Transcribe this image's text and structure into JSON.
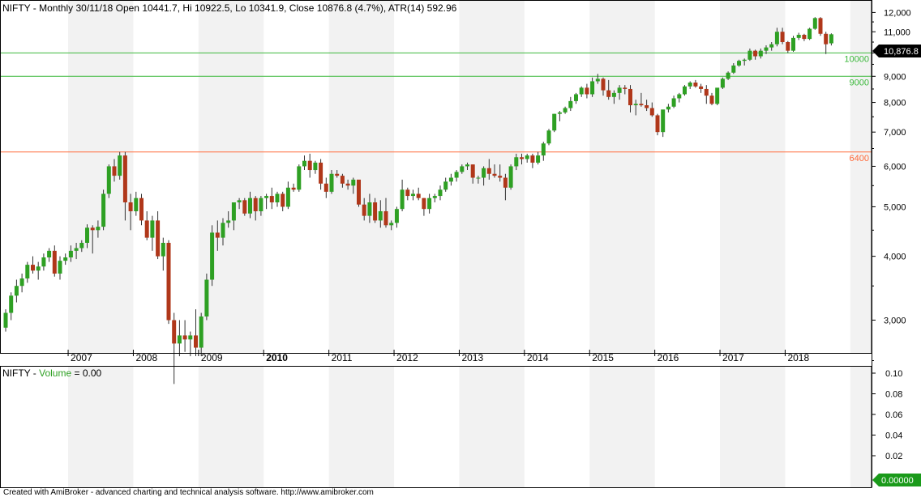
{
  "header": {
    "symbol": "NIFTY",
    "info": " - Monthly 30/11/18 Open 10441.7, Hi 10922.5, Lo 10341.9, Close 10876.8 (4.7%), ATR(14) 592.96"
  },
  "volume_header": {
    "symbol": "NIFTY",
    "dash": " - ",
    "label": "Volume",
    "value_text": " = 0.00"
  },
  "footer": "Created with AmiBroker - advanced charting and technical analysis software. http://www.amibroker.com",
  "colors": {
    "up": "#2ea023",
    "down": "#b0371a",
    "level_green": "#3cb93c",
    "level_orange": "#ff6a3a",
    "band": "#f2f2f2",
    "axis": "#000000"
  },
  "last_price_badge": "10,876.8",
  "volume_badge": "0.00000",
  "chart_data": [
    {
      "type": "candlestick",
      "title": "NIFTY - Monthly 30/11/18 Open 10441.7, Hi 10922.5, Lo 10341.9, Close 10876.8 (4.7%), ATR(14) 592.96",
      "x_labels": [
        "2007",
        "2008",
        "2009",
        "2010",
        "2011",
        "2012",
        "2013",
        "2014",
        "2015",
        "2016",
        "2017",
        "2018"
      ],
      "bold_x_label": "2010",
      "y_ticks": [
        "12,000",
        "11,000",
        "10,000",
        "9,000",
        "8,000",
        "7,000",
        "6,000",
        "5,000",
        "4,000",
        "3,000"
      ],
      "ylim": [
        2000,
        12400
      ],
      "start": "2006-01",
      "series": [
        {
          "values": [
            [
              2900,
              3150,
              2850,
              3100
            ],
            [
              3100,
              3400,
              3000,
              3350
            ],
            [
              3350,
              3600,
              3250,
              3500
            ],
            [
              3500,
              3700,
              3400,
              3620
            ],
            [
              3620,
              3900,
              3550,
              3850
            ],
            [
              3850,
              4000,
              3700,
              3750
            ],
            [
              3750,
              3900,
              3600,
              3820
            ],
            [
              3820,
              4050,
              3750,
              3980
            ],
            [
              3980,
              4150,
              3900,
              4100
            ],
            [
              4100,
              4200,
              3650,
              3700
            ],
            [
              3700,
              4000,
              3600,
              3920
            ],
            [
              3920,
              4050,
              3850,
              3980
            ],
            [
              3980,
              4200,
              3900,
              4100
            ],
            [
              4100,
              4250,
              3950,
              4150
            ],
            [
              4150,
              4300,
              4080,
              4250
            ],
            [
              4250,
              4620,
              4150,
              4550
            ],
            [
              4550,
              4600,
              4050,
              4500
            ],
            [
              4500,
              4700,
              4350,
              4570
            ],
            [
              4570,
              5400,
              4500,
              5300
            ],
            [
              5300,
              6050,
              5200,
              6000
            ],
            [
              6000,
              6200,
              5600,
              5750
            ],
            [
              5750,
              6400,
              5650,
              6300
            ],
            [
              6300,
              6400,
              4700,
              5100
            ],
            [
              5100,
              5300,
              4500,
              4900
            ],
            [
              4900,
              5350,
              4800,
              5200
            ],
            [
              5200,
              5300,
              4600,
              4700
            ],
            [
              4700,
              4900,
              4300,
              4350
            ],
            [
              4350,
              4800,
              4100,
              4700
            ],
            [
              4700,
              4900,
              3950,
              4000
            ],
            [
              4000,
              4350,
              3750,
              4250
            ],
            [
              4250,
              4300,
              2950,
              3000
            ],
            [
              3000,
              3100,
              2250,
              2700
            ],
            [
              2700,
              3000,
              2550,
              2800
            ],
            [
              2800,
              3000,
              2600,
              2750
            ],
            [
              2750,
              2850,
              2550,
              2800
            ],
            [
              2800,
              3150,
              2550,
              2650
            ],
            [
              2650,
              3100,
              2550,
              3050
            ],
            [
              3050,
              3700,
              3000,
              3600
            ],
            [
              3600,
              4600,
              3500,
              4450
            ],
            [
              4450,
              4700,
              4100,
              4350
            ],
            [
              4350,
              4750,
              4200,
              4650
            ],
            [
              4650,
              4900,
              4550,
              4700
            ],
            [
              4700,
              5000,
              4500,
              5100
            ],
            [
              5100,
              5200,
              4950,
              5150
            ],
            [
              5150,
              5200,
              4800,
              4850
            ],
            [
              4850,
              5350,
              4750,
              5200
            ],
            [
              5200,
              5250,
              4700,
              4900
            ],
            [
              4900,
              5250,
              4800,
              5200
            ],
            [
              5200,
              5300,
              4950,
              5250
            ],
            [
              5250,
              5450,
              4950,
              5100
            ],
            [
              5100,
              5350,
              5000,
              5300
            ],
            [
              5300,
              5350,
              4900,
              5000
            ],
            [
              5000,
              5600,
              4950,
              5450
            ],
            [
              5450,
              5550,
              5350,
              5400
            ],
            [
              5400,
              6050,
              5350,
              6000
            ],
            [
              6000,
              6300,
              5900,
              6150
            ],
            [
              6150,
              6350,
              5700,
              5900
            ],
            [
              5900,
              6150,
              5800,
              6100
            ],
            [
              6100,
              6200,
              5400,
              5550
            ],
            [
              5550,
              5700,
              5200,
              5350
            ],
            [
              5350,
              5900,
              5300,
              5800
            ],
            [
              5800,
              5900,
              5700,
              5750
            ],
            [
              5750,
              5800,
              5450,
              5550
            ],
            [
              5550,
              5650,
              5400,
              5500
            ],
            [
              5500,
              5700,
              5300,
              5650
            ],
            [
              5650,
              5600,
              5000,
              5050
            ],
            [
              5050,
              5200,
              4700,
              4800
            ],
            [
              4800,
              5300,
              4650,
              5100
            ],
            [
              5100,
              5200,
              4650,
              4700
            ],
            [
              4700,
              5150,
              4550,
              4900
            ],
            [
              4900,
              5200,
              4550,
              4600
            ],
            [
              4600,
              4700,
              4500,
              4650
            ],
            [
              4650,
              5000,
              4550,
              4950
            ],
            [
              4950,
              5650,
              4900,
              5400
            ],
            [
              5400,
              5450,
              5150,
              5250
            ],
            [
              5250,
              5400,
              5150,
              5300
            ],
            [
              5300,
              5450,
              5150,
              5200
            ],
            [
              5200,
              5200,
              4800,
              4950
            ],
            [
              4950,
              5300,
              4850,
              5200
            ],
            [
              5200,
              5300,
              5100,
              5250
            ],
            [
              5250,
              5500,
              5150,
              5400
            ],
            [
              5400,
              5700,
              5350,
              5600
            ],
            [
              5600,
              5800,
              5500,
              5700
            ],
            [
              5700,
              5900,
              5600,
              5850
            ],
            [
              5850,
              6050,
              5800,
              6000
            ],
            [
              6000,
              6100,
              5900,
              6050
            ],
            [
              6050,
              6050,
              5550,
              5700
            ],
            [
              5700,
              5750,
              5550,
              5700
            ],
            [
              5700,
              6000,
              5500,
              5950
            ],
            [
              5950,
              6200,
              5650,
              5800
            ],
            [
              5800,
              6050,
              5700,
              5750
            ],
            [
              5750,
              6050,
              5600,
              5700
            ],
            [
              5700,
              5800,
              5150,
              5450
            ],
            [
              5450,
              6050,
              5400,
              6000
            ],
            [
              6000,
              6350,
              5900,
              6250
            ],
            [
              6250,
              6350,
              6050,
              6200
            ],
            [
              6200,
              6350,
              6100,
              6300
            ],
            [
              6300,
              6350,
              5950,
              6100
            ],
            [
              6100,
              6400,
              6050,
              6300
            ],
            [
              6300,
              6700,
              6150,
              6650
            ],
            [
              6650,
              7100,
              6600,
              7050
            ],
            [
              7050,
              7600,
              7000,
              7600
            ],
            [
              7600,
              7700,
              7350,
              7650
            ],
            [
              7650,
              7850,
              7600,
              7800
            ],
            [
              7800,
              8200,
              7700,
              8050
            ],
            [
              8050,
              8350,
              7950,
              8300
            ],
            [
              8300,
              8600,
              8200,
              8550
            ],
            [
              8550,
              8700,
              8150,
              8300
            ],
            [
              8300,
              8950,
              8200,
              8800
            ],
            [
              8800,
              9100,
              8700,
              8900
            ],
            [
              8900,
              8950,
              8250,
              8450
            ],
            [
              8450,
              8850,
              8100,
              8200
            ],
            [
              8200,
              8450,
              7950,
              8350
            ],
            [
              8350,
              8650,
              8100,
              8550
            ],
            [
              8550,
              8650,
              8300,
              8500
            ],
            [
              8500,
              8650,
              7650,
              7900
            ],
            [
              7900,
              8100,
              7550,
              7950
            ],
            [
              7950,
              8350,
              7850,
              7900
            ],
            [
              7900,
              8100,
              7700,
              7800
            ],
            [
              7800,
              8000,
              7500,
              7550
            ],
            [
              7550,
              7600,
              6900,
              7000
            ],
            [
              7000,
              7550,
              6850,
              7750
            ],
            [
              7750,
              7950,
              7650,
              7850
            ],
            [
              7850,
              8250,
              7800,
              8150
            ],
            [
              8150,
              8350,
              8000,
              8300
            ],
            [
              8300,
              8650,
              8250,
              8600
            ],
            [
              8600,
              8800,
              8500,
              8750
            ],
            [
              8750,
              8850,
              8550,
              8600
            ],
            [
              8600,
              8700,
              8350,
              8500
            ],
            [
              8500,
              8650,
              7950,
              8250
            ],
            [
              8250,
              8350,
              7900,
              7950
            ],
            [
              7950,
              8350,
              7900,
              8550
            ],
            [
              8550,
              8950,
              8500,
              8900
            ],
            [
              8900,
              9200,
              8850,
              9150
            ],
            [
              9150,
              9550,
              9100,
              9450
            ],
            [
              9450,
              9700,
              9400,
              9650
            ],
            [
              9650,
              9750,
              9450,
              9700
            ],
            [
              9700,
              10200,
              9650,
              10100
            ],
            [
              10100,
              10150,
              9700,
              9850
            ],
            [
              9850,
              10200,
              9750,
              10100
            ],
            [
              10100,
              10350,
              9950,
              10250
            ],
            [
              10250,
              10500,
              10100,
              10400
            ],
            [
              10400,
              11200,
              10300,
              11000
            ],
            [
              11000,
              11200,
              10400,
              10500
            ],
            [
              10500,
              10550,
              10000,
              10100
            ],
            [
              10100,
              10800,
              10050,
              10700
            ],
            [
              10700,
              10950,
              10600,
              10850
            ],
            [
              10850,
              10900,
              10550,
              10650
            ],
            [
              10650,
              11200,
              10600,
              11150
            ],
            [
              11150,
              11750,
              11100,
              11700
            ],
            [
              11700,
              11750,
              10800,
              10900
            ],
            [
              10900,
              11000,
              9950,
              10400
            ],
            [
              10441.7,
              10922.5,
              10341.9,
              10876.8
            ]
          ]
        }
      ],
      "levels": [
        {
          "value": 10000,
          "label": "10000",
          "color": "#3cb93c"
        },
        {
          "value": 9000,
          "label": "9000",
          "color": "#3cb93c"
        },
        {
          "value": 6400,
          "label": "6400",
          "color": "#ff6a3a"
        }
      ]
    },
    {
      "type": "bar",
      "title": "NIFTY - Volume = 0.00",
      "y_ticks": [
        "0.10",
        "0.08",
        "0.06",
        "0.04",
        "0.02"
      ],
      "ylim": [
        0,
        0.12
      ],
      "values": []
    }
  ]
}
